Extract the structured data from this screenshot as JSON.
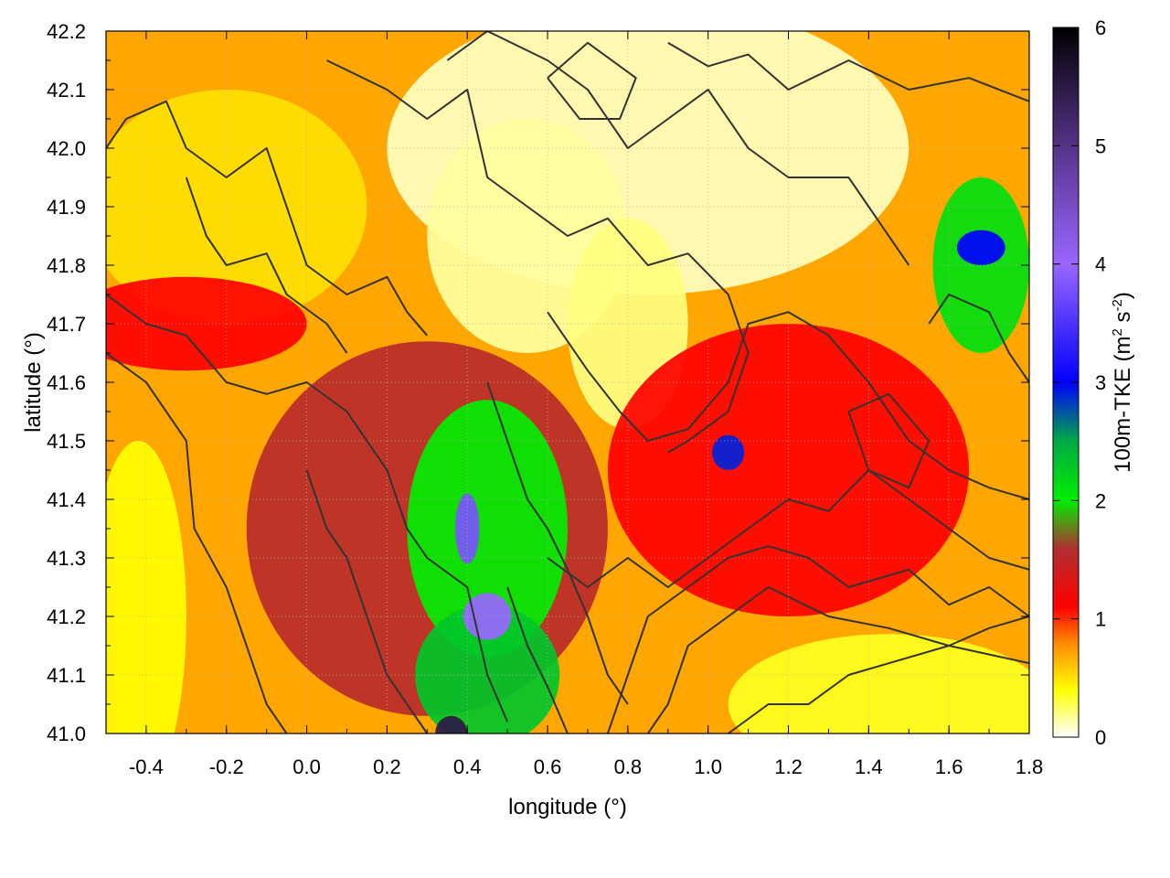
{
  "chart_data": {
    "type": "heatmap",
    "title": "",
    "xlabel": "longitude (°)",
    "ylabel": "latitude (°)",
    "colorbar_label": {
      "text": "100m-TKE (m",
      "sup1": "2",
      "mid": " s",
      "sup2": "-2",
      "end": ")"
    },
    "xlim": [
      -0.5,
      1.8
    ],
    "ylim": [
      41.0,
      42.2
    ],
    "xticks": [
      "-0.4",
      "-0.2",
      "0.0",
      "0.2",
      "0.4",
      "0.6",
      "0.8",
      "1.0",
      "1.2",
      "1.4",
      "1.6",
      "1.8"
    ],
    "xtick_values": [
      -0.4,
      -0.2,
      0.0,
      0.2,
      0.4,
      0.6,
      0.8,
      1.0,
      1.2,
      1.4,
      1.6,
      1.8
    ],
    "yticks": [
      "41.0",
      "41.1",
      "41.2",
      "41.3",
      "41.4",
      "41.5",
      "41.6",
      "41.7",
      "41.8",
      "41.9",
      "42.0",
      "42.1",
      "42.2"
    ],
    "ytick_values": [
      41.0,
      41.1,
      41.2,
      41.3,
      41.4,
      41.5,
      41.6,
      41.7,
      41.8,
      41.9,
      42.0,
      42.1,
      42.2
    ],
    "colorbar_range": [
      0,
      6
    ],
    "colorbar_ticks": [
      "0",
      "1",
      "2",
      "3",
      "4",
      "5",
      "6"
    ],
    "colorbar_tick_values": [
      0,
      1,
      2,
      3,
      4,
      5,
      6
    ],
    "grid": true,
    "colormap": [
      {
        "value": 0.0,
        "color": "#ffffff"
      },
      {
        "value": 0.4,
        "color": "#ffff00"
      },
      {
        "value": 0.8,
        "color": "#ff8800"
      },
      {
        "value": 1.1,
        "color": "#ff0000"
      },
      {
        "value": 1.6,
        "color": "#b03030"
      },
      {
        "value": 2.0,
        "color": "#00ee00"
      },
      {
        "value": 2.5,
        "color": "#00aa44"
      },
      {
        "value": 3.0,
        "color": "#0000ff"
      },
      {
        "value": 4.0,
        "color": "#9966ff"
      },
      {
        "value": 5.0,
        "color": "#553388"
      },
      {
        "value": 6.0,
        "color": "#000000"
      }
    ],
    "contour_color": "#333333",
    "field_regions": [
      {
        "name": "background",
        "value": 0.7
      },
      {
        "name": "northeast-calm",
        "lon": 0.85,
        "lat": 42.0,
        "rlon": 0.65,
        "rlat": 0.25,
        "value": 0.1
      },
      {
        "name": "north-central-calm",
        "lon": 0.55,
        "lat": 41.85,
        "rlon": 0.25,
        "rlat": 0.2,
        "value": 0.15
      },
      {
        "name": "north-gap-calm",
        "lon": 0.8,
        "lat": 41.7,
        "rlon": 0.15,
        "rlat": 0.18,
        "value": 0.2
      },
      {
        "name": "northwest-band",
        "lon": -0.2,
        "lat": 41.9,
        "rlon": 0.35,
        "rlat": 0.2,
        "value": 0.5
      },
      {
        "name": "west-red-band",
        "lon": -0.3,
        "lat": 41.7,
        "rlon": 0.3,
        "rlat": 0.08,
        "value": 1.1
      },
      {
        "name": "southwest-yellow",
        "lon": -0.42,
        "lat": 41.2,
        "rlon": 0.12,
        "rlat": 0.3,
        "value": 0.4
      },
      {
        "name": "central-basin",
        "lon": 0.3,
        "lat": 41.35,
        "rlon": 0.45,
        "rlat": 0.32,
        "value": 1.55
      },
      {
        "name": "central-green",
        "lon": 0.45,
        "lat": 41.35,
        "rlon": 0.2,
        "rlat": 0.22,
        "value": 2.0
      },
      {
        "name": "south-green",
        "lon": 0.45,
        "lat": 41.1,
        "rlon": 0.18,
        "rlat": 0.12,
        "value": 2.3
      },
      {
        "name": "south-purple-core",
        "lon": 0.45,
        "lat": 41.2,
        "rlon": 0.06,
        "rlat": 0.04,
        "value": 4.0
      },
      {
        "name": "south-purple-core-2",
        "lon": 0.4,
        "lat": 41.35,
        "rlon": 0.03,
        "rlat": 0.06,
        "value": 3.8
      },
      {
        "name": "south-dark-core",
        "lon": 0.36,
        "lat": 41.0,
        "rlon": 0.04,
        "rlat": 0.03,
        "value": 5.5
      },
      {
        "name": "east-red-band",
        "lon": 1.2,
        "lat": 41.45,
        "rlon": 0.45,
        "rlat": 0.25,
        "value": 1.1
      },
      {
        "name": "east-blue-spot",
        "lon": 1.05,
        "lat": 41.48,
        "rlon": 0.04,
        "rlat": 0.03,
        "value": 2.9
      },
      {
        "name": "far-east-green",
        "lon": 1.68,
        "lat": 41.8,
        "rlon": 0.12,
        "rlat": 0.15,
        "value": 2.1
      },
      {
        "name": "far-east-blue",
        "lon": 1.68,
        "lat": 41.83,
        "rlon": 0.06,
        "rlat": 0.03,
        "value": 3.0
      },
      {
        "name": "southeast-yellow",
        "lon": 1.45,
        "lat": 41.05,
        "rlon": 0.4,
        "rlat": 0.12,
        "value": 0.35
      }
    ],
    "contours": [
      [
        [
          -0.5,
          42.0
        ],
        [
          -0.45,
          42.05
        ],
        [
          -0.35,
          42.08
        ],
        [
          -0.3,
          42.0
        ],
        [
          -0.2,
          41.95
        ],
        [
          -0.1,
          42.0
        ],
        [
          -0.05,
          41.9
        ],
        [
          0.0,
          41.8
        ],
        [
          0.1,
          41.75
        ],
        [
          0.2,
          41.78
        ],
        [
          0.25,
          41.72
        ],
        [
          0.3,
          41.68
        ]
      ],
      [
        [
          -0.5,
          41.75
        ],
        [
          -0.4,
          41.7
        ],
        [
          -0.3,
          41.68
        ],
        [
          -0.2,
          41.6
        ],
        [
          -0.1,
          41.58
        ],
        [
          0.0,
          41.6
        ],
        [
          0.1,
          41.55
        ],
        [
          0.15,
          41.5
        ],
        [
          0.2,
          41.45
        ],
        [
          0.25,
          41.35
        ],
        [
          0.3,
          41.3
        ],
        [
          0.4,
          41.25
        ],
        [
          0.45,
          41.1
        ],
        [
          0.5,
          41.02
        ]
      ],
      [
        [
          -0.5,
          41.65
        ],
        [
          -0.4,
          41.6
        ],
        [
          -0.3,
          41.5
        ],
        [
          -0.28,
          41.35
        ],
        [
          -0.2,
          41.25
        ],
        [
          -0.15,
          41.15
        ],
        [
          -0.1,
          41.05
        ],
        [
          -0.05,
          41.0
        ]
      ],
      [
        [
          0.05,
          42.15
        ],
        [
          0.2,
          42.1
        ],
        [
          0.3,
          42.05
        ],
        [
          0.4,
          42.1
        ],
        [
          0.45,
          41.95
        ],
        [
          0.55,
          41.9
        ],
        [
          0.65,
          41.85
        ],
        [
          0.75,
          41.88
        ],
        [
          0.85,
          41.8
        ],
        [
          0.95,
          41.82
        ],
        [
          1.05,
          41.75
        ],
        [
          1.1,
          41.65
        ],
        [
          1.05,
          41.55
        ],
        [
          0.95,
          41.5
        ],
        [
          0.9,
          41.48
        ]
      ],
      [
        [
          0.35,
          42.15
        ],
        [
          0.45,
          42.2
        ],
        [
          0.6,
          42.15
        ],
        [
          0.7,
          42.1
        ],
        [
          0.8,
          42.0
        ],
        [
          0.9,
          42.05
        ],
        [
          1.0,
          42.1
        ],
        [
          1.1,
          42.0
        ],
        [
          1.2,
          41.95
        ],
        [
          1.35,
          41.95
        ],
        [
          1.45,
          41.85
        ],
        [
          1.5,
          41.8
        ]
      ],
      [
        [
          0.6,
          42.12
        ],
        [
          0.7,
          42.18
        ],
        [
          0.82,
          42.12
        ],
        [
          0.78,
          42.05
        ],
        [
          0.68,
          42.05
        ],
        [
          0.6,
          42.12
        ]
      ],
      [
        [
          0.9,
          42.18
        ],
        [
          1.0,
          42.14
        ],
        [
          1.1,
          42.16
        ],
        [
          1.2,
          42.1
        ],
        [
          1.35,
          42.15
        ],
        [
          1.5,
          42.1
        ],
        [
          1.65,
          42.12
        ],
        [
          1.8,
          42.08
        ]
      ],
      [
        [
          0.6,
          41.72
        ],
        [
          0.7,
          41.62
        ],
        [
          0.78,
          41.55
        ],
        [
          0.85,
          41.5
        ],
        [
          0.95,
          41.52
        ],
        [
          1.05,
          41.6
        ],
        [
          1.1,
          41.7
        ],
        [
          1.2,
          41.72
        ],
        [
          1.3,
          41.68
        ],
        [
          1.4,
          41.6
        ],
        [
          1.5,
          41.5
        ],
        [
          1.6,
          41.45
        ],
        [
          1.7,
          41.42
        ],
        [
          1.8,
          41.4
        ]
      ],
      [
        [
          0.6,
          41.3
        ],
        [
          0.7,
          41.25
        ],
        [
          0.8,
          41.3
        ],
        [
          0.9,
          41.25
        ],
        [
          1.0,
          41.3
        ],
        [
          1.1,
          41.35
        ],
        [
          1.2,
          41.4
        ],
        [
          1.3,
          41.38
        ],
        [
          1.4,
          41.45
        ],
        [
          1.5,
          41.4
        ],
        [
          1.6,
          41.35
        ],
        [
          1.7,
          41.3
        ],
        [
          1.8,
          41.28
        ]
      ],
      [
        [
          0.75,
          41.0
        ],
        [
          0.8,
          41.1
        ],
        [
          0.85,
          41.2
        ],
        [
          0.95,
          41.25
        ],
        [
          1.05,
          41.3
        ],
        [
          1.15,
          41.32
        ],
        [
          1.25,
          41.3
        ],
        [
          1.35,
          41.25
        ],
        [
          1.5,
          41.28
        ],
        [
          1.6,
          41.22
        ],
        [
          1.7,
          41.25
        ],
        [
          1.8,
          41.2
        ]
      ],
      [
        [
          0.85,
          41.0
        ],
        [
          0.9,
          41.05
        ],
        [
          0.95,
          41.15
        ],
        [
          1.05,
          41.2
        ],
        [
          1.15,
          41.25
        ],
        [
          1.3,
          41.2
        ],
        [
          1.45,
          41.18
        ],
        [
          1.6,
          41.15
        ],
        [
          1.8,
          41.12
        ]
      ],
      [
        [
          1.05,
          41.0
        ],
        [
          1.15,
          41.05
        ],
        [
          1.25,
          41.05
        ],
        [
          1.35,
          41.1
        ],
        [
          1.45,
          41.12
        ],
        [
          1.6,
          41.15
        ],
        [
          1.7,
          41.18
        ],
        [
          1.8,
          41.2
        ]
      ],
      [
        [
          0.0,
          41.45
        ],
        [
          0.05,
          41.35
        ],
        [
          0.1,
          41.3
        ],
        [
          0.15,
          41.2
        ],
        [
          0.2,
          41.1
        ],
        [
          0.25,
          41.05
        ],
        [
          0.3,
          41.0
        ]
      ],
      [
        [
          0.5,
          41.25
        ],
        [
          0.55,
          41.15
        ],
        [
          0.6,
          41.08
        ],
        [
          0.65,
          41.0
        ]
      ],
      [
        [
          0.45,
          41.6
        ],
        [
          0.5,
          41.5
        ],
        [
          0.55,
          41.4
        ],
        [
          0.6,
          41.35
        ],
        [
          0.65,
          41.28
        ],
        [
          0.7,
          41.2
        ],
        [
          0.75,
          41.1
        ],
        [
          0.8,
          41.05
        ]
      ],
      [
        [
          -0.3,
          41.95
        ],
        [
          -0.25,
          41.85
        ],
        [
          -0.2,
          41.8
        ],
        [
          -0.1,
          41.82
        ],
        [
          -0.05,
          41.75
        ],
        [
          0.05,
          41.7
        ],
        [
          0.1,
          41.65
        ]
      ],
      [
        [
          1.55,
          41.7
        ],
        [
          1.6,
          41.75
        ],
        [
          1.7,
          41.72
        ],
        [
          1.75,
          41.65
        ],
        [
          1.8,
          41.6
        ]
      ],
      [
        [
          1.35,
          41.55
        ],
        [
          1.4,
          41.45
        ],
        [
          1.5,
          41.42
        ],
        [
          1.55,
          41.5
        ],
        [
          1.45,
          41.58
        ],
        [
          1.35,
          41.55
        ]
      ]
    ]
  }
}
